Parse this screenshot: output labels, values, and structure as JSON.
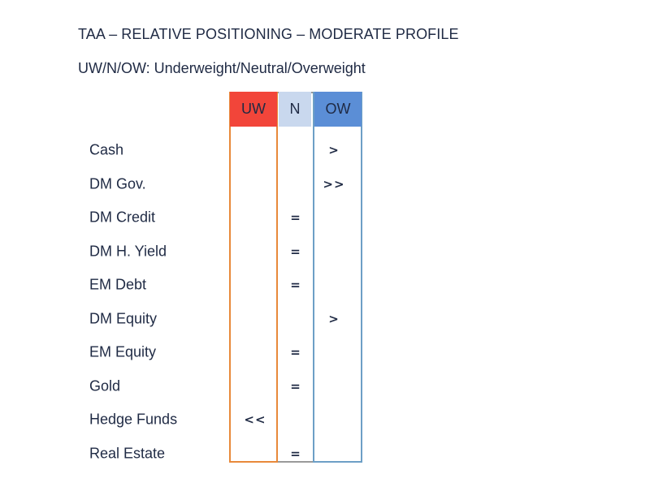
{
  "title": "TAA – RELATIVE POSITIONING – MODERATE PROFILE",
  "subtitle": "UW/N/OW: Underweight/Neutral/Overweight",
  "columns": {
    "uw": "UW",
    "n": "N",
    "ow": "OW"
  },
  "colors": {
    "uw_header": "#f2453a",
    "n_header": "#c9d8ee",
    "ow_header": "#5b8ed6",
    "uw_border": "#e8893a",
    "ow_border": "#6d9fc6"
  },
  "rows": [
    {
      "label": "Cash",
      "position": "OW",
      "mark": ">"
    },
    {
      "label": "DM Gov.",
      "position": "OW",
      "mark": ">>"
    },
    {
      "label": "DM Credit",
      "position": "N",
      "mark": "="
    },
    {
      "label": "DM H. Yield",
      "position": "N",
      "mark": "="
    },
    {
      "label": "EM Debt",
      "position": "N",
      "mark": "="
    },
    {
      "label": "DM Equity",
      "position": "OW",
      "mark": ">"
    },
    {
      "label": "EM Equity",
      "position": "N",
      "mark": "="
    },
    {
      "label": "Gold",
      "position": "N",
      "mark": "="
    },
    {
      "label": "Hedge Funds",
      "position": "UW",
      "mark": "<<"
    },
    {
      "label": "Real Estate",
      "position": "N",
      "mark": "="
    }
  ]
}
